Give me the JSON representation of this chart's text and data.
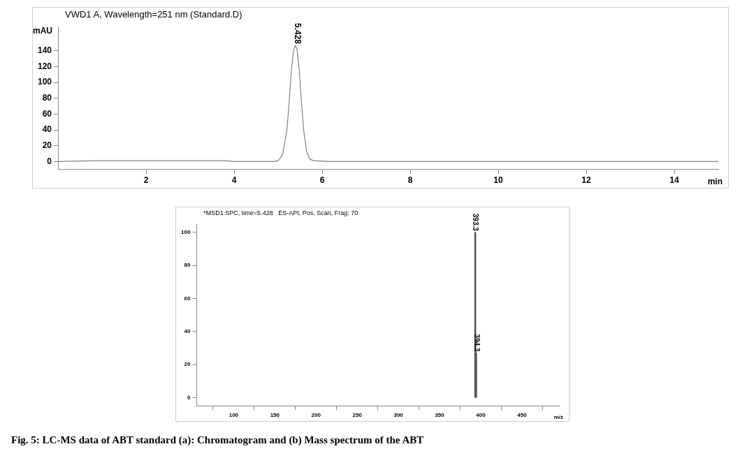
{
  "chart_data": [
    {
      "type": "line",
      "title": "VWD1 A, Wavelength=251 nm (Standard.D)",
      "xlabel": "min",
      "ylabel": "mAU",
      "xlim": [
        0,
        15
      ],
      "ylim": [
        -10,
        170
      ],
      "xticks": [
        2,
        4,
        6,
        8,
        10,
        12,
        14
      ],
      "yticks": [
        0,
        20,
        40,
        60,
        80,
        100,
        120,
        140
      ],
      "legend": false,
      "grid": false,
      "marker": "none",
      "annotations": [
        {
          "text": "5.428",
          "x": 5.428,
          "y": 147
        }
      ],
      "series": [
        {
          "color": "#808080",
          "x": [
            0,
            0.9,
            2,
            3,
            3.8,
            4,
            4.9,
            5.0,
            5.1,
            5.2,
            5.25,
            5.3,
            5.35,
            5.39,
            5.43,
            5.48,
            5.53,
            5.58,
            5.65,
            5.72,
            5.8,
            6.2,
            15
          ],
          "values": [
            0,
            1,
            1,
            1,
            1,
            0,
            0,
            1,
            8,
            40,
            75,
            115,
            140,
            147,
            142,
            115,
            75,
            40,
            12,
            3,
            1,
            0,
            0
          ]
        }
      ]
    },
    {
      "type": "bar",
      "title": "*MSD1 SPC, time=5.428   ES-API, Pos, Scan, Frag: 70",
      "xlabel": "m/z",
      "xlim": [
        55,
        495
      ],
      "ylim": [
        -5,
        105
      ],
      "xticks": [
        100,
        150,
        200,
        250,
        300,
        350,
        400,
        450
      ],
      "yticks": [
        0,
        20,
        40,
        60,
        80,
        100
      ],
      "legend": false,
      "grid": false,
      "annotations": [
        "Fig. 5: LC-MS data of ABT standard (a): Chromatogram and (b) Mass spectrum of the ABT",
        {
          "text": "393.3",
          "x": 393.3,
          "y": 100
        },
        {
          "text": "394.3",
          "x": 394.3,
          "y": 27
        }
      ],
      "series": [
        {
          "color": "#555555",
          "x": [
            393.3,
            394.3
          ],
          "values": [
            100,
            27
          ]
        }
      ]
    }
  ]
}
